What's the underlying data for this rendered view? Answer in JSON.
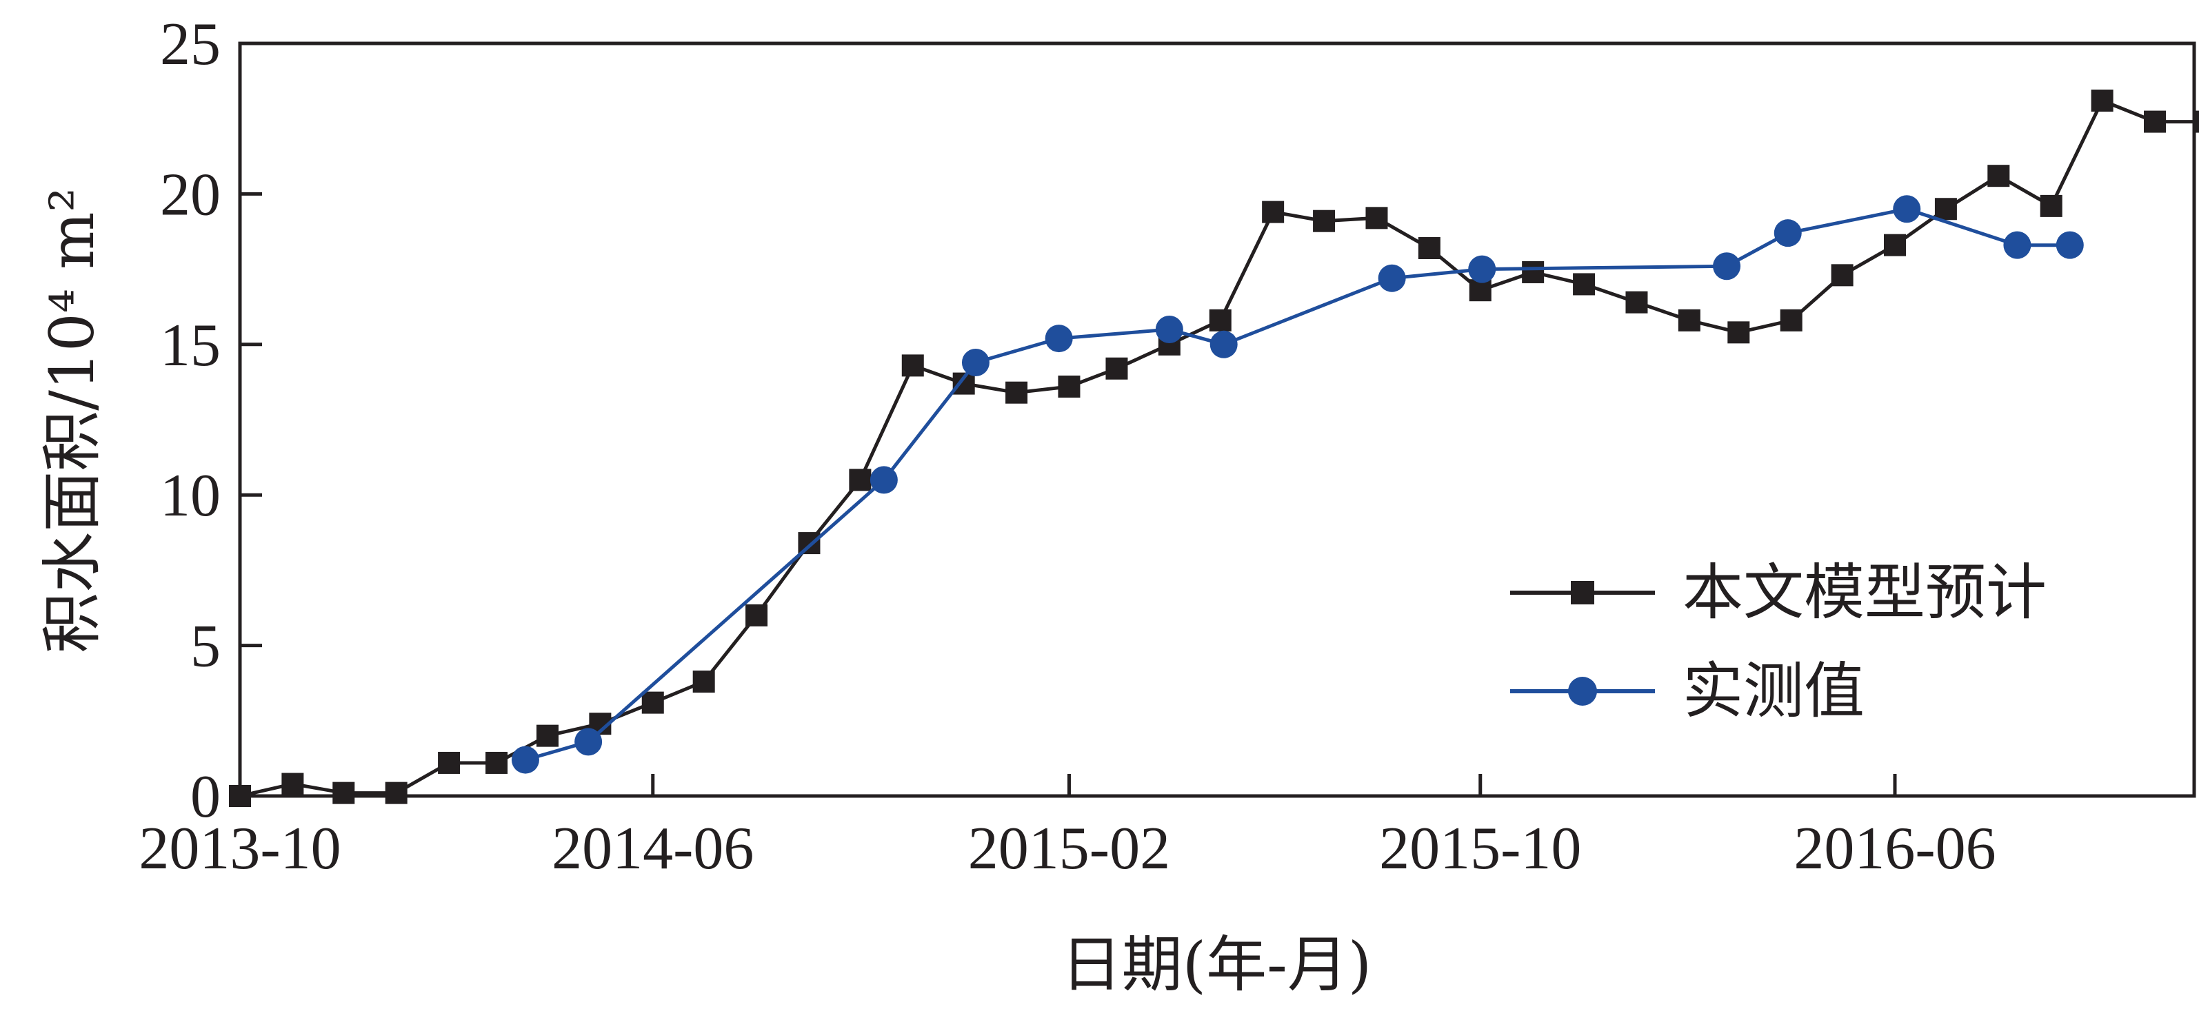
{
  "chart_data": {
    "type": "line",
    "title": "",
    "xlabel": "日期(年-月)",
    "ylabel": "积水面积/10⁴ m²",
    "ylim": [
      0,
      25
    ],
    "xlim": [
      "2013-10",
      "2016-11"
    ],
    "x_ticks": [
      "2013-10",
      "2014-06",
      "2015-02",
      "2015-10",
      "2016-06"
    ],
    "y_ticks": [
      "0",
      "5",
      "10",
      "15",
      "20",
      "25"
    ],
    "grid": false,
    "legend_position": "bottom-right",
    "series": [
      {
        "name": "本文模型预计",
        "color": "#231f20",
        "marker": "square",
        "points": [
          [
            "2013-10-01",
            0.0
          ],
          [
            "2013-11-01",
            0.4
          ],
          [
            "2013-12-01",
            0.1
          ],
          [
            "2014-01-01",
            0.1
          ],
          [
            "2014-02-01",
            1.1
          ],
          [
            "2014-03-01",
            1.1
          ],
          [
            "2014-03-31",
            2.0
          ],
          [
            "2014-05-01",
            2.4
          ],
          [
            "2014-06-01",
            3.1
          ],
          [
            "2014-07-01",
            3.8
          ],
          [
            "2014-08-01",
            6.0
          ],
          [
            "2014-09-01",
            8.4
          ],
          [
            "2014-10-01",
            10.5
          ],
          [
            "2014-11-01",
            14.3
          ],
          [
            "2014-12-01",
            13.7
          ],
          [
            "2015-01-01",
            13.4
          ],
          [
            "2015-02-01",
            13.6
          ],
          [
            "2015-03-01",
            14.2
          ],
          [
            "2015-04-01",
            15.0
          ],
          [
            "2015-05-01",
            15.8
          ],
          [
            "2015-06-01",
            19.4
          ],
          [
            "2015-07-01",
            19.1
          ],
          [
            "2015-08-01",
            19.2
          ],
          [
            "2015-09-01",
            18.2
          ],
          [
            "2015-10-01",
            16.8
          ],
          [
            "2015-11-01",
            17.4
          ],
          [
            "2015-12-01",
            17.0
          ],
          [
            "2016-01-01",
            16.4
          ],
          [
            "2016-02-01",
            15.8
          ],
          [
            "2016-03-01",
            15.4
          ],
          [
            "2016-04-01",
            15.8
          ],
          [
            "2016-05-01",
            17.3
          ],
          [
            "2016-06-01",
            18.3
          ],
          [
            "2016-07-01",
            19.5
          ],
          [
            "2016-08-01",
            20.6
          ],
          [
            "2016-09-01",
            19.6
          ],
          [
            "2016-10-01",
            23.1
          ],
          [
            "2016-11-01",
            22.4
          ],
          [
            "2016-12-01",
            22.4
          ]
        ]
      },
      {
        "name": "实测值",
        "color": "#1f4e9c",
        "marker": "circle",
        "points": [
          [
            "2014-03-18",
            1.2
          ],
          [
            "2014-04-24",
            1.8
          ],
          [
            "2014-10-15",
            10.5
          ],
          [
            "2014-12-08",
            14.4
          ],
          [
            "2015-01-26",
            15.2
          ],
          [
            "2015-04-01",
            15.5
          ],
          [
            "2015-05-03",
            15.0
          ],
          [
            "2015-08-10",
            17.2
          ],
          [
            "2015-10-02",
            17.5
          ],
          [
            "2016-02-23",
            17.6
          ],
          [
            "2016-03-30",
            18.7
          ],
          [
            "2016-06-08",
            19.5
          ],
          [
            "2016-08-12",
            18.3
          ],
          [
            "2016-09-12",
            18.3
          ]
        ]
      }
    ]
  }
}
